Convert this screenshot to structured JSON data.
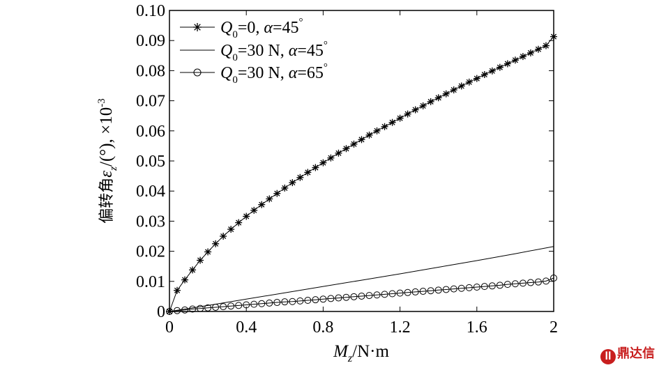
{
  "chart_data": {
    "type": "line",
    "title": "",
    "xlabel": {
      "main": "M",
      "sub": "z",
      "unit": "/N·m"
    },
    "ylabel": {
      "prefix": "偏转角",
      "symbol": "ε",
      "sub": "z",
      "unit": "/(°), ×10",
      "exp": "-3"
    },
    "xlim": [
      0,
      2
    ],
    "ylim": [
      0,
      0.1
    ],
    "x_ticks": [
      "0",
      "0.4",
      "0.8",
      "1.2",
      "1.6",
      "2"
    ],
    "y_ticks": [
      "0",
      "0.01",
      "0.02",
      "0.03",
      "0.04",
      "0.05",
      "0.06",
      "0.07",
      "0.08",
      "0.09",
      "0.10"
    ],
    "legend_position": "top-left",
    "series": [
      {
        "name": "Q0=0, α=45°",
        "legend": {
          "q": "Q",
          "sub": "0",
          "rest": "=0, ",
          "alpha": "α",
          "value": "=45",
          "deg": "°"
        },
        "marker": "star",
        "x": [
          0,
          0.04,
          0.08,
          0.12,
          0.16,
          0.2,
          0.24,
          0.28,
          0.32,
          0.36,
          0.4,
          0.44,
          0.48,
          0.52,
          0.56,
          0.6,
          0.64,
          0.68,
          0.72,
          0.76,
          0.8,
          0.84,
          0.88,
          0.92,
          0.96,
          1.0,
          1.04,
          1.08,
          1.12,
          1.16,
          1.2,
          1.24,
          1.28,
          1.32,
          1.36,
          1.4,
          1.44,
          1.48,
          1.52,
          1.56,
          1.6,
          1.64,
          1.68,
          1.72,
          1.76,
          1.8,
          1.84,
          1.88,
          1.92,
          1.96,
          2.0
        ],
        "y": [
          0,
          0.007,
          0.0105,
          0.0138,
          0.017,
          0.0198,
          0.0225,
          0.025,
          0.0273,
          0.0295,
          0.0316,
          0.0336,
          0.0355,
          0.0374,
          0.0392,
          0.041,
          0.0428,
          0.0445,
          0.0462,
          0.0478,
          0.0494,
          0.051,
          0.0526,
          0.0541,
          0.0556,
          0.0571,
          0.0586,
          0.06,
          0.0614,
          0.0628,
          0.0642,
          0.0656,
          0.067,
          0.0683,
          0.0697,
          0.071,
          0.0723,
          0.0736,
          0.0749,
          0.0762,
          0.0774,
          0.0787,
          0.0799,
          0.0811,
          0.0823,
          0.0835,
          0.0847,
          0.0859,
          0.0871,
          0.0883,
          0.0913
        ]
      },
      {
        "name": "Q0=30 N, α=45°",
        "legend": {
          "q": "Q",
          "sub": "0",
          "rest": "=30 N, ",
          "alpha": "α",
          "value": "=45",
          "deg": "°"
        },
        "marker": "none",
        "x": [
          0,
          0.2,
          0.4,
          0.6,
          0.8,
          1.0,
          1.2,
          1.4,
          1.6,
          1.8,
          2.0
        ],
        "y": [
          0,
          0.002,
          0.0041,
          0.0062,
          0.0083,
          0.0104,
          0.0125,
          0.0147,
          0.0169,
          0.0192,
          0.0216
        ]
      },
      {
        "name": "Q0=30 N, α=65°",
        "legend": {
          "q": "Q",
          "sub": "0",
          "rest": "=30 N, ",
          "alpha": "α",
          "value": "=65",
          "deg": "°"
        },
        "marker": "circle",
        "x": [
          0,
          0.04,
          0.08,
          0.12,
          0.16,
          0.2,
          0.24,
          0.28,
          0.32,
          0.36,
          0.4,
          0.44,
          0.48,
          0.52,
          0.56,
          0.6,
          0.64,
          0.68,
          0.72,
          0.76,
          0.8,
          0.84,
          0.88,
          0.92,
          0.96,
          1.0,
          1.04,
          1.08,
          1.12,
          1.16,
          1.2,
          1.24,
          1.28,
          1.32,
          1.36,
          1.4,
          1.44,
          1.48,
          1.52,
          1.56,
          1.6,
          1.64,
          1.68,
          1.72,
          1.76,
          1.8,
          1.84,
          1.88,
          1.92,
          1.96,
          2.0
        ],
        "y": [
          0,
          0.0003,
          0.0005,
          0.0008,
          0.001,
          0.0012,
          0.0014,
          0.0016,
          0.0018,
          0.002,
          0.0022,
          0.0024,
          0.0026,
          0.0028,
          0.003,
          0.0032,
          0.0033,
          0.0035,
          0.0037,
          0.0039,
          0.0041,
          0.0043,
          0.0045,
          0.0047,
          0.0049,
          0.0051,
          0.0053,
          0.0055,
          0.0057,
          0.0059,
          0.0061,
          0.0063,
          0.0065,
          0.0067,
          0.0069,
          0.0071,
          0.0073,
          0.0075,
          0.0077,
          0.0079,
          0.0081,
          0.0083,
          0.0085,
          0.0087,
          0.009,
          0.0092,
          0.0094,
          0.0096,
          0.0098,
          0.0101,
          0.0111
        ]
      }
    ]
  },
  "watermark": {
    "mark": "ꟾꟾ",
    "text": "鼎达信"
  }
}
